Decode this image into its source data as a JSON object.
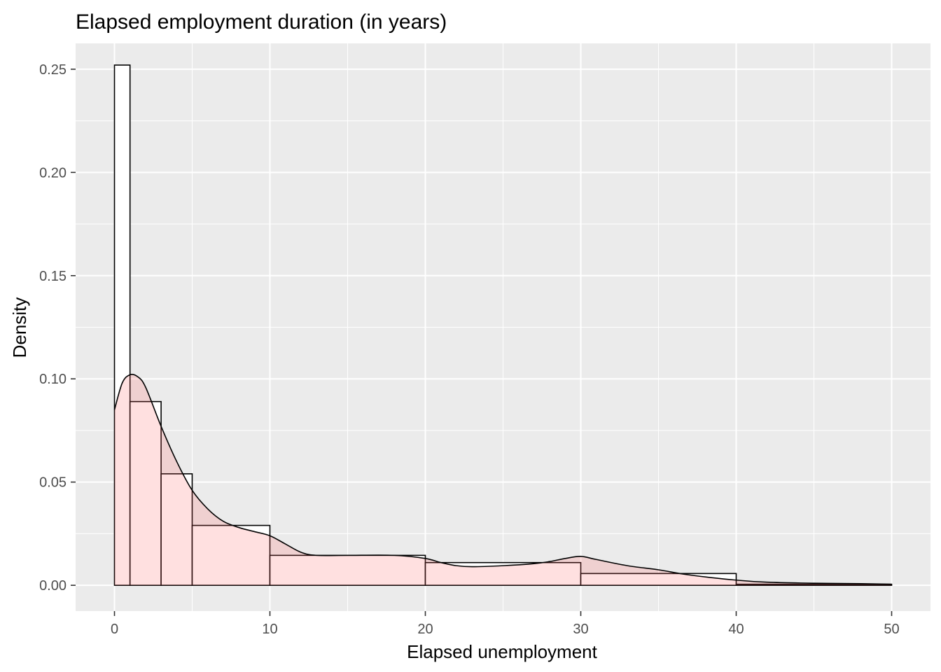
{
  "chart_data": {
    "type": "histogram",
    "title": "Elapsed employment duration (in years)",
    "xlabel": "Elapsed unemployment",
    "ylabel": "Density",
    "xlim": [
      -2.5,
      52.5
    ],
    "ylim": [
      -0.0125,
      0.2625
    ],
    "x_ticks": [
      0,
      10,
      20,
      30,
      40,
      50
    ],
    "y_ticks": [
      0.0,
      0.05,
      0.1,
      0.15,
      0.2,
      0.25
    ],
    "x_tick_labels": [
      "0",
      "10",
      "20",
      "30",
      "40",
      "50"
    ],
    "y_tick_labels": [
      "0.00",
      "0.05",
      "0.10",
      "0.15",
      "0.20",
      "0.25"
    ],
    "grid": true,
    "histogram_bins": [
      {
        "x0": 0,
        "x1": 1,
        "density": 0.252
      },
      {
        "x0": 1,
        "x1": 3,
        "density": 0.089
      },
      {
        "x0": 3,
        "x1": 5,
        "density": 0.054
      },
      {
        "x0": 5,
        "x1": 10,
        "density": 0.029
      },
      {
        "x0": 10,
        "x1": 20,
        "density": 0.0145
      },
      {
        "x0": 20,
        "x1": 30,
        "density": 0.011
      },
      {
        "x0": 30,
        "x1": 40,
        "density": 0.0057
      },
      {
        "x0": 40,
        "x1": 50,
        "density": 0.0005
      }
    ],
    "density_curve": {
      "x": [
        0,
        0.5,
        1,
        1.5,
        2,
        3,
        4,
        5,
        6,
        7,
        8,
        9,
        10,
        11,
        12,
        13,
        15,
        18,
        20,
        21,
        22,
        23,
        25,
        27,
        28,
        29,
        30,
        31,
        33,
        35,
        37,
        40,
        42,
        45,
        48,
        50
      ],
      "y": [
        0.085,
        0.098,
        0.102,
        0.101,
        0.096,
        0.077,
        0.06,
        0.046,
        0.037,
        0.031,
        0.028,
        0.026,
        0.024,
        0.02,
        0.016,
        0.0145,
        0.0145,
        0.0145,
        0.013,
        0.011,
        0.0095,
        0.009,
        0.0095,
        0.0105,
        0.0115,
        0.013,
        0.014,
        0.0125,
        0.0095,
        0.0075,
        0.005,
        0.0025,
        0.0015,
        0.001,
        0.0008,
        0.0005
      ]
    },
    "colors": {
      "panel_background": "#ebebeb",
      "grid_line": "#ffffff",
      "bar_fill": "#ffffff",
      "bar_outline": "#000000",
      "density_fill": "#ff6666",
      "density_fill_opacity": 0.2,
      "density_line": "#000000",
      "tick_label": "#4d4d4d",
      "tick_mark": "#333333"
    }
  }
}
